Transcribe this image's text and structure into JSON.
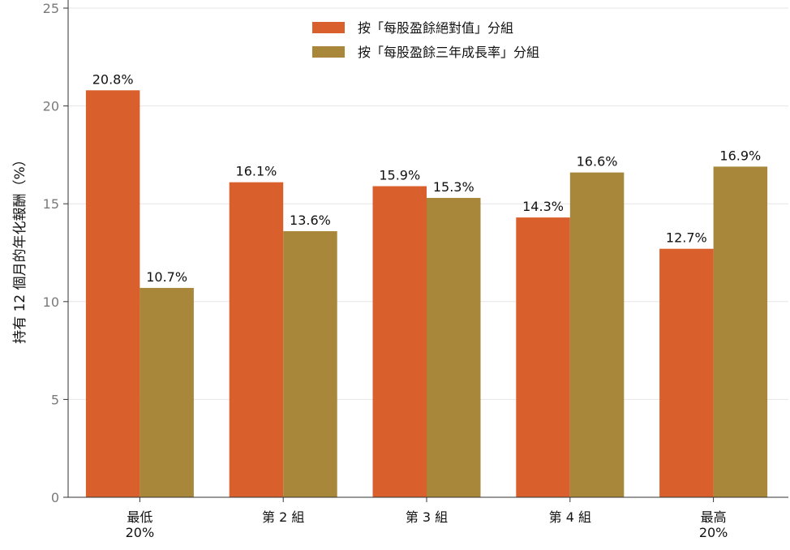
{
  "chart_data": {
    "type": "bar",
    "categories": [
      [
        "最低",
        "20%"
      ],
      [
        "第 2 組"
      ],
      [
        "第 3 組"
      ],
      [
        "第 4 組"
      ],
      [
        "最高",
        "20%"
      ]
    ],
    "series": [
      {
        "name": "按「每股盈餘絕對值」分組",
        "values": [
          20.8,
          16.1,
          15.9,
          14.3,
          12.7
        ],
        "labels": [
          "20.8%",
          "16.1%",
          "15.9%",
          "14.3%",
          "12.7%"
        ],
        "color": "#D9602C"
      },
      {
        "name": "按「每股盈餘三年成長率」分組",
        "values": [
          10.7,
          13.6,
          15.3,
          16.6,
          16.9
        ],
        "labels": [
          "10.7%",
          "13.6%",
          "15.3%",
          "16.6%",
          "16.9%"
        ],
        "color": "#A8873B"
      }
    ],
    "ylabel": "持有 12 個月的年化報酬（%）",
    "ylim": [
      0,
      25
    ],
    "yticks": [
      0,
      5,
      10,
      15,
      20,
      25
    ],
    "grid": true,
    "legend": "top-center",
    "colors": {
      "grid": "#e6e6e6",
      "axis": "#333333"
    }
  }
}
